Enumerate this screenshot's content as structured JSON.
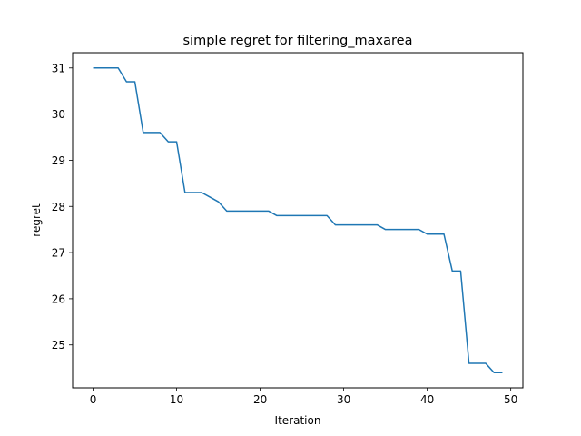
{
  "chart_data": {
    "type": "line",
    "title": "simple regret for filtering_maxarea",
    "xlabel": "Iteration",
    "ylabel": "regret",
    "xlim": [
      -2.45,
      51.45
    ],
    "ylim": [
      24.07,
      31.33
    ],
    "xticks": [
      0,
      10,
      20,
      30,
      40,
      50
    ],
    "yticks": [
      25,
      26,
      27,
      28,
      29,
      30,
      31
    ],
    "grid": false,
    "series": [
      {
        "color": "#1f77b4",
        "x": [
          0,
          1,
          2,
          3,
          4,
          5,
          6,
          7,
          8,
          9,
          10,
          11,
          12,
          13,
          14,
          15,
          16,
          17,
          18,
          19,
          20,
          21,
          22,
          23,
          24,
          25,
          26,
          27,
          28,
          29,
          30,
          31,
          32,
          33,
          34,
          35,
          36,
          37,
          38,
          39,
          40,
          41,
          42,
          43,
          44,
          45,
          46,
          47,
          48,
          49
        ],
        "y": [
          31.0,
          31.0,
          31.0,
          31.0,
          30.7,
          30.7,
          29.6,
          29.6,
          29.6,
          29.4,
          29.4,
          28.3,
          28.3,
          28.3,
          28.2,
          28.1,
          27.9,
          27.9,
          27.9,
          27.9,
          27.9,
          27.9,
          27.8,
          27.8,
          27.8,
          27.8,
          27.8,
          27.8,
          27.8,
          27.6,
          27.6,
          27.6,
          27.6,
          27.6,
          27.6,
          27.5,
          27.5,
          27.5,
          27.5,
          27.5,
          27.4,
          27.4,
          27.4,
          26.6,
          26.6,
          24.6,
          24.6,
          24.6,
          24.4,
          24.4
        ]
      }
    ]
  }
}
